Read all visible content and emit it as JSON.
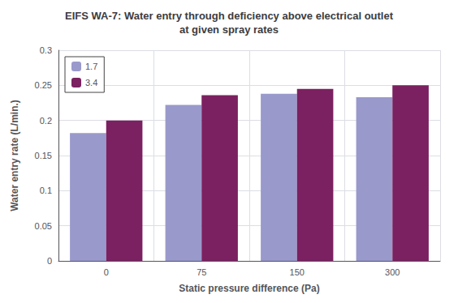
{
  "chart_data": {
    "type": "bar",
    "title": "EIFS WA-7: Water entry through deficiency above electrical outlet\nat given spray rates",
    "xlabel": "Static pressure difference (Pa)",
    "ylabel": "Water entry rate (L/min.)",
    "categories": [
      "0",
      "75",
      "150",
      "300"
    ],
    "series": [
      {
        "name": "1.7",
        "color": "#9999cc",
        "values": [
          0.182,
          0.222,
          0.238,
          0.233
        ]
      },
      {
        "name": "3.4",
        "color": "#7B2060",
        "values": [
          0.2,
          0.236,
          0.245,
          0.25
        ]
      }
    ],
    "ylim": [
      0,
      0.3
    ],
    "yticks": [
      0,
      0.05,
      0.1,
      0.15,
      0.2,
      0.25,
      0.3
    ],
    "grid": true,
    "legend": "upper left"
  }
}
